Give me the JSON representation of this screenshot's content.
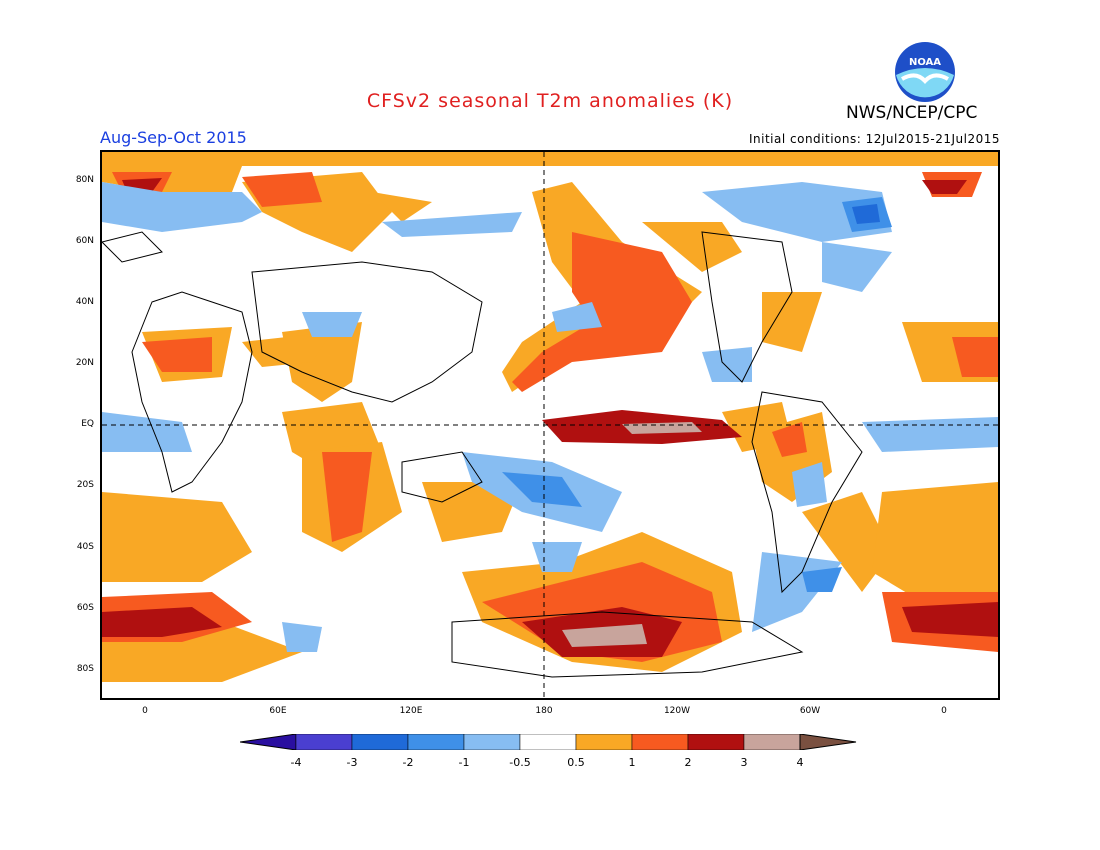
{
  "header": {
    "title": "CFSv2 seasonal T2m anomalies (K)",
    "season": "Aug-Sep-Oct 2015",
    "initial_conditions": "Initial conditions: 12Jul2015-21Jul2015",
    "agency": "NWS/NCEP/CPC",
    "logo_text": "NOAA"
  },
  "map": {
    "lat_ticks": [
      "80N",
      "60N",
      "40N",
      "20N",
      "EQ",
      "20S",
      "40S",
      "60S",
      "80S"
    ],
    "lon_ticks": [
      "0",
      "60E",
      "120E",
      "180",
      "120W",
      "60W",
      "0"
    ]
  },
  "legend": {
    "labels": [
      "-4",
      "-3",
      "-2",
      "-1",
      "-0.5",
      "0.5",
      "1",
      "2",
      "3",
      "4"
    ],
    "colors": [
      "#2a0fa0",
      "#4a3fd0",
      "#1f6ad8",
      "#3f90e8",
      "#87bdf2",
      "#ffffff",
      "#f9a825",
      "#f75a20",
      "#b01010",
      "#c8a49c",
      "#7a5040"
    ]
  },
  "colors": {
    "title": "#e02020",
    "season": "#1a3fe0",
    "warm_light": "#f9a825",
    "warm_mid": "#f75a20",
    "warm_dark": "#b01010",
    "warm_extreme": "#c8a49c",
    "cool_light": "#87bdf2",
    "cool_mid": "#3f90e8",
    "cool_dark": "#1f6ad8"
  }
}
